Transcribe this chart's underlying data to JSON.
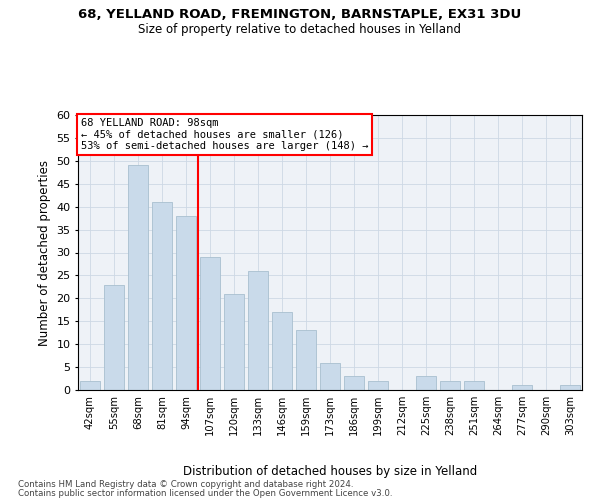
{
  "title1": "68, YELLAND ROAD, FREMINGTON, BARNSTAPLE, EX31 3DU",
  "title2": "Size of property relative to detached houses in Yelland",
  "xlabel": "Distribution of detached houses by size in Yelland",
  "ylabel": "Number of detached properties",
  "bar_labels": [
    "42sqm",
    "55sqm",
    "68sqm",
    "81sqm",
    "94sqm",
    "107sqm",
    "120sqm",
    "133sqm",
    "146sqm",
    "159sqm",
    "173sqm",
    "186sqm",
    "199sqm",
    "212sqm",
    "225sqm",
    "238sqm",
    "251sqm",
    "264sqm",
    "277sqm",
    "290sqm",
    "303sqm"
  ],
  "bar_values": [
    2,
    23,
    49,
    41,
    38,
    29,
    21,
    26,
    17,
    13,
    6,
    3,
    2,
    0,
    3,
    2,
    2,
    0,
    1,
    0,
    1
  ],
  "bar_color": "#c9daea",
  "bar_edgecolor": "#a8bfcf",
  "grid_color": "#cdd8e5",
  "vline_x": 4.5,
  "vline_color": "red",
  "annotation_title": "68 YELLAND ROAD: 98sqm",
  "annotation_line1": "← 45% of detached houses are smaller (126)",
  "annotation_line2": "53% of semi-detached houses are larger (148) →",
  "annotation_box_color": "white",
  "annotation_box_edgecolor": "red",
  "ylim": [
    0,
    60
  ],
  "yticks": [
    0,
    5,
    10,
    15,
    20,
    25,
    30,
    35,
    40,
    45,
    50,
    55,
    60
  ],
  "footnote1": "Contains HM Land Registry data © Crown copyright and database right 2024.",
  "footnote2": "Contains public sector information licensed under the Open Government Licence v3.0.",
  "bg_color": "#eef2f7"
}
